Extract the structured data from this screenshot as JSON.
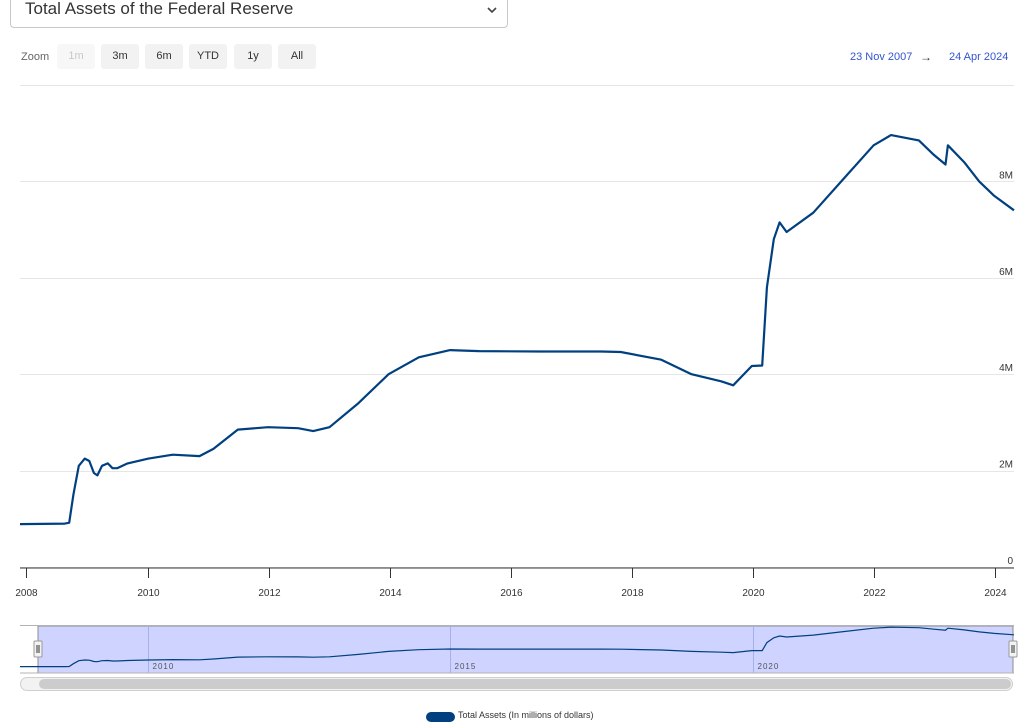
{
  "header": {
    "select_value": "Total Assets of the Federal Reserve"
  },
  "range_selector": {
    "zoom_label": "Zoom",
    "buttons": [
      {
        "label": "1m",
        "enabled": false
      },
      {
        "label": "3m",
        "enabled": true
      },
      {
        "label": "6m",
        "enabled": true
      },
      {
        "label": "YTD",
        "enabled": true
      },
      {
        "label": "1y",
        "enabled": true
      },
      {
        "label": "All",
        "enabled": true
      }
    ],
    "from_date": "23 Nov 2007",
    "arrow": "→",
    "to_date": "24 Apr 2024"
  },
  "colors": {
    "series": "#004080",
    "navigator_mask": "#c5cbff",
    "navigator_outline": "#8c8c8c",
    "grid": "#e6e6e6",
    "range_text": "#3355cc"
  },
  "chart_data": {
    "type": "line",
    "title": "",
    "xlabel": "",
    "ylabel": "",
    "x_tick_labels": [
      "2008",
      "2010",
      "2012",
      "2014",
      "2016",
      "2018",
      "2020",
      "2022",
      "2024"
    ],
    "y_tick_labels": [
      "0",
      "2M",
      "4M",
      "6M",
      "8M"
    ],
    "ylim": [
      0,
      10000000
    ],
    "xlim": [
      "2007-11-23",
      "2024-04-24"
    ],
    "grid": true,
    "legend_position": "bottom-center",
    "series": [
      {
        "name": "Total Assets (In millions of dollars)",
        "points": [
          [
            "2007-11-23",
            890000
          ],
          [
            "2008-08-20",
            900000
          ],
          [
            "2008-09-15",
            920000
          ],
          [
            "2008-10-10",
            1500000
          ],
          [
            "2008-11-12",
            2100000
          ],
          [
            "2008-12-18",
            2250000
          ],
          [
            "2009-01-14",
            2200000
          ],
          [
            "2009-02-11",
            1950000
          ],
          [
            "2009-03-04",
            1900000
          ],
          [
            "2009-04-01",
            2100000
          ],
          [
            "2009-05-06",
            2150000
          ],
          [
            "2009-06-03",
            2050000
          ],
          [
            "2009-07-01",
            2050000
          ],
          [
            "2009-09-02",
            2150000
          ],
          [
            "2010-01-06",
            2250000
          ],
          [
            "2010-06-02",
            2330000
          ],
          [
            "2010-11-10",
            2300000
          ],
          [
            "2011-02-02",
            2450000
          ],
          [
            "2011-06-29",
            2850000
          ],
          [
            "2011-12-28",
            2900000
          ],
          [
            "2012-06-27",
            2880000
          ],
          [
            "2012-09-26",
            2820000
          ],
          [
            "2013-01-02",
            2900000
          ],
          [
            "2013-06-26",
            3400000
          ],
          [
            "2013-12-25",
            4000000
          ],
          [
            "2014-06-25",
            4350000
          ],
          [
            "2014-12-31",
            4500000
          ],
          [
            "2015-06-24",
            4480000
          ],
          [
            "2016-06-29",
            4470000
          ],
          [
            "2017-06-28",
            4470000
          ],
          [
            "2017-10-25",
            4460000
          ],
          [
            "2018-06-27",
            4300000
          ],
          [
            "2018-12-26",
            4000000
          ],
          [
            "2019-06-26",
            3850000
          ],
          [
            "2019-09-04",
            3770000
          ],
          [
            "2019-12-25",
            4170000
          ],
          [
            "2020-02-26",
            4180000
          ],
          [
            "2020-03-25",
            5800000
          ],
          [
            "2020-05-06",
            6800000
          ],
          [
            "2020-06-10",
            7150000
          ],
          [
            "2020-07-22",
            6950000
          ],
          [
            "2020-12-30",
            7350000
          ],
          [
            "2021-06-30",
            8050000
          ],
          [
            "2021-12-29",
            8750000
          ],
          [
            "2022-04-13",
            8960000
          ],
          [
            "2022-09-28",
            8850000
          ],
          [
            "2022-12-28",
            8550000
          ],
          [
            "2023-03-08",
            8350000
          ],
          [
            "2023-03-22",
            8750000
          ],
          [
            "2023-06-28",
            8400000
          ],
          [
            "2023-09-27",
            8000000
          ],
          [
            "2023-12-27",
            7700000
          ],
          [
            "2024-04-24",
            7400000
          ]
        ]
      }
    ],
    "navigator": {
      "x_tick_labels": [
        "2010",
        "2015",
        "2020"
      ]
    }
  }
}
